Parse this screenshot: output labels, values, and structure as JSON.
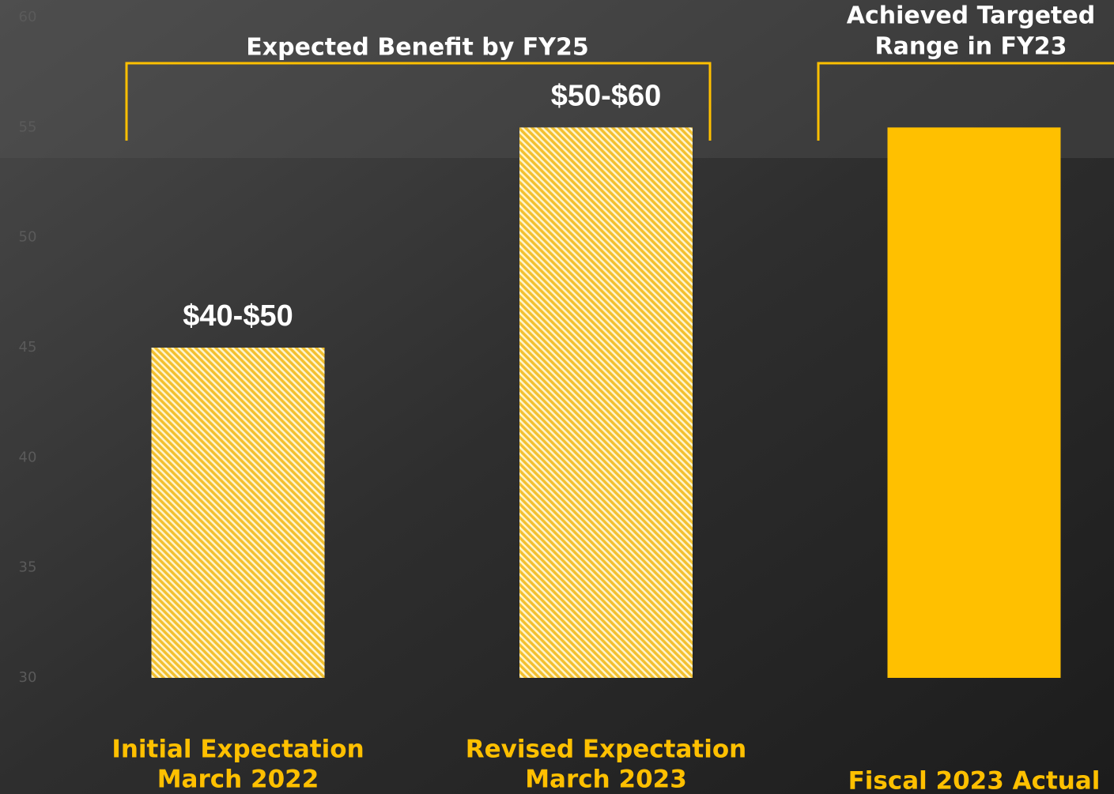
{
  "chart_data": {
    "type": "bar",
    "categories": [
      [
        "Initial Expectation",
        "March 2022"
      ],
      [
        "Revised Expectation",
        "March 2023"
      ],
      [
        "Fiscal 2023 Actual"
      ]
    ],
    "values": [
      45,
      55,
      55
    ],
    "value_labels": [
      "$40-$50",
      "$50-$60",
      null
    ],
    "hatched": [
      true,
      true,
      false
    ],
    "color": "#FFC000",
    "ylim": [
      30,
      60
    ],
    "yticks": [
      30,
      35,
      40,
      45,
      50,
      55,
      60
    ],
    "annotations": [
      {
        "lines": [
          "Expected Benefit by FY25"
        ]
      },
      {
        "lines": [
          "Achieved Targeted",
          "Range in FY23"
        ]
      }
    ]
  }
}
